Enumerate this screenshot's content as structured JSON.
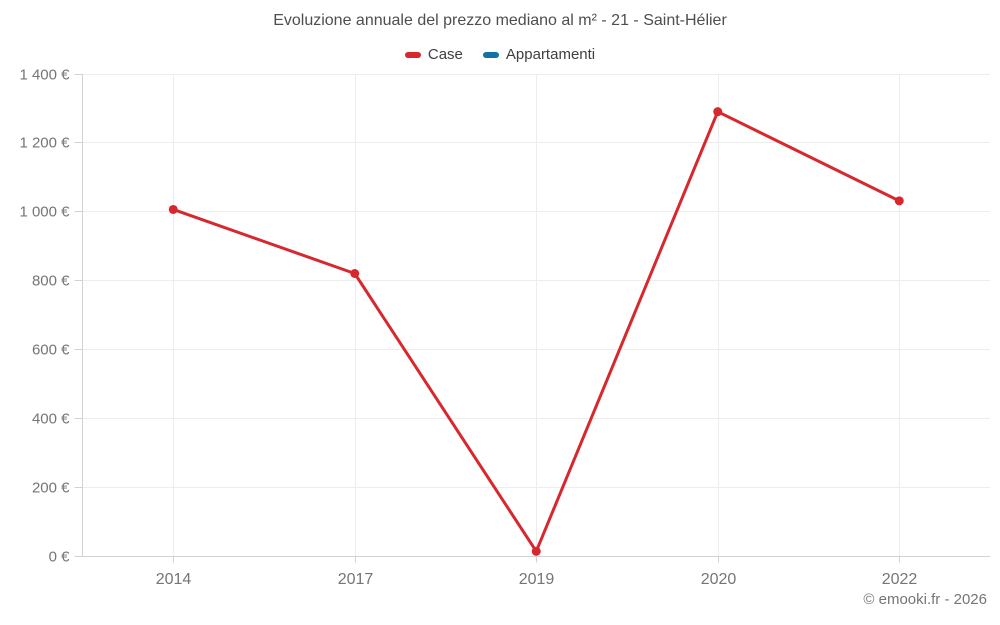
{
  "title": "Evoluzione annuale del prezzo mediano al m² - 21 - Saint-Hélier",
  "footer": "© emooki.fr - 2026",
  "chart_data": {
    "type": "line",
    "title": "Evoluzione annuale del prezzo mediano al m² - 21 - Saint-Hélier",
    "categories": [
      "2014",
      "2017",
      "2019",
      "2020",
      "2022"
    ],
    "series": [
      {
        "name": "Case",
        "color": "#d7282d",
        "values": [
          1008,
          822,
          15,
          1292,
          1033
        ]
      },
      {
        "name": "Appartamenti",
        "color": "#1272a3",
        "values": []
      }
    ],
    "xlabel": "",
    "ylabel": "",
    "ylim": [
      0,
      1400
    ],
    "yticks": [
      {
        "value": 0,
        "label": "0 €"
      },
      {
        "value": 200,
        "label": "200 €"
      },
      {
        "value": 400,
        "label": "400 €"
      },
      {
        "value": 600,
        "label": "600 €"
      },
      {
        "value": 800,
        "label": "800 €"
      },
      {
        "value": 1000,
        "label": "1 000 €"
      },
      {
        "value": 1200,
        "label": "1 200 €"
      },
      {
        "value": 1400,
        "label": "1 400 €"
      }
    ],
    "grid": true,
    "legend_position": "top",
    "colors": {
      "grid": "#ededed",
      "axis": "#d2d2d2",
      "tick_text": "#757575",
      "title_text": "#4e4e4e"
    }
  }
}
